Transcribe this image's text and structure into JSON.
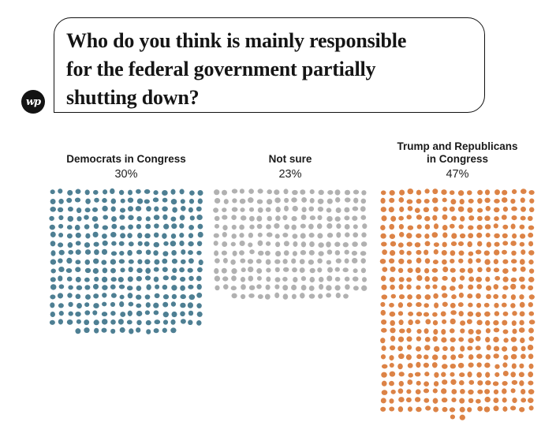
{
  "branding": {
    "logo_text": "wp"
  },
  "question": {
    "lines": [
      "Who do you think is mainly responsible",
      "for the federal government partially",
      "shutting down?"
    ]
  },
  "chart_data": {
    "type": "dot-density",
    "title": "Who do you think is mainly responsible for the federal government partially shutting down?",
    "categories": [
      "Democrats in Congress",
      "Not sure",
      "Trump and Republicans in Congress"
    ],
    "values": [
      30,
      23,
      47
    ],
    "value_labels": [
      "30%",
      "23%",
      "47%"
    ],
    "colors": [
      "#4e7f93",
      "#b1b1b1",
      "#dc8346"
    ],
    "dot_counts": [
      300,
      230,
      470
    ],
    "columns": 18,
    "percent_per_dot": 0.1,
    "legend_position": "none",
    "grid": false
  }
}
